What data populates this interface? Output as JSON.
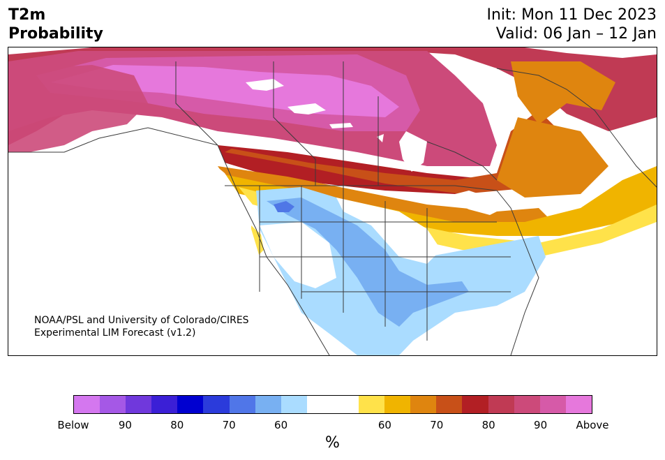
{
  "header": {
    "title_line1": "T2m",
    "title_line2": "Probability",
    "init_text": "Init: Mon 11 Dec 2023",
    "valid_text": "Valid: 06 Jan – 12 Jan"
  },
  "map": {
    "credit_line1": "NOAA/PSL and University of Colorado/CIRES",
    "credit_line2": "Experimental LIM Forecast (v1.2)",
    "land_color": "#ffffff",
    "border_color": "#3a3a3a",
    "legend_mapping": {
      "above_95": "#e678dc",
      "above_90": "#d65aa8",
      "above_85": "#cc4a7a",
      "above_80": "#c03a54",
      "above_75": "#b21f24",
      "above_70": "#c85018",
      "above_65": "#df850f",
      "above_60": "#f0b400",
      "above_55": "#ffe24a",
      "near_normal": "#ffffff",
      "below_55": "#aadcff",
      "below_60": "#78b0f2",
      "below_65": "#4f77e6",
      "below_70": "#2838dc"
    }
  },
  "colorbar": {
    "colors": [
      "#d477ef",
      "#a558e6",
      "#7038dc",
      "#3b1fd6",
      "#0000d0",
      "#2b3bdb",
      "#5076e8",
      "#78b0f2",
      "#aadcff",
      "#ffffff",
      "#ffffff",
      "#ffe24a",
      "#f0b400",
      "#df850f",
      "#c85018",
      "#b21f24",
      "#c03a54",
      "#cc4a7a",
      "#d65aa8",
      "#e678dc"
    ],
    "tick_labels": [
      "Below",
      "90",
      "80",
      "70",
      "60",
      "60",
      "70",
      "80",
      "90",
      "Above"
    ],
    "unit_label": "%"
  }
}
